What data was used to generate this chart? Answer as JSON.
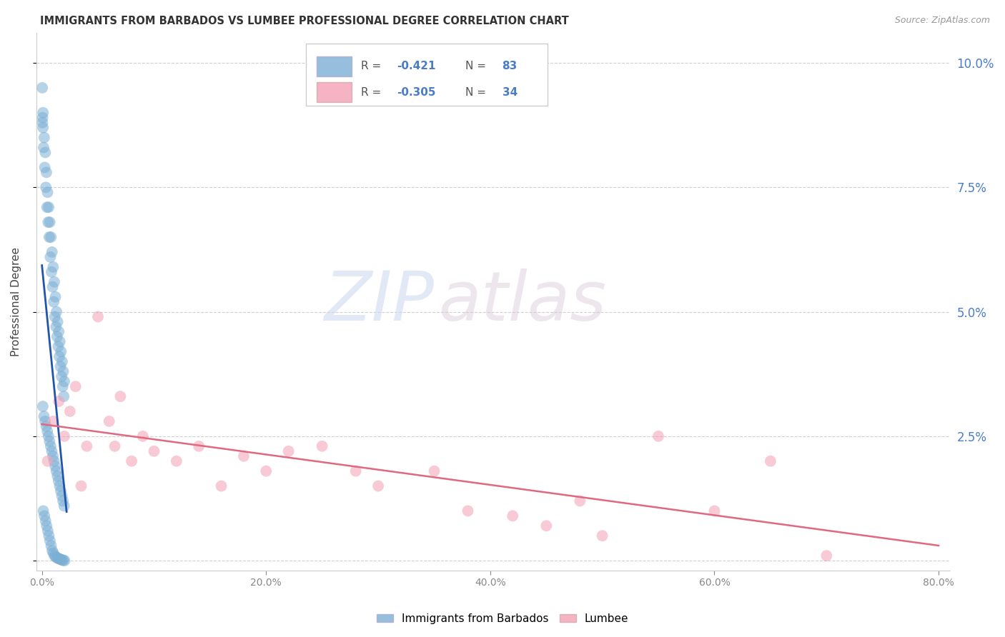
{
  "title": "IMMIGRANTS FROM BARBADOS VS LUMBEE PROFESSIONAL DEGREE CORRELATION CHART",
  "source": "Source: ZipAtlas.com",
  "ylabel": "Professional Degree",
  "blue_R": -0.421,
  "blue_N": 83,
  "pink_R": -0.305,
  "pink_N": 34,
  "blue_color": "#7bafd4",
  "pink_color": "#f4a0b5",
  "blue_line_color": "#2255aa",
  "pink_line_color": "#e06880",
  "legend_blue_label": "Immigrants from Barbados",
  "legend_pink_label": "Lumbee",
  "watermark_zip": "ZIP",
  "watermark_atlas": "atlas",
  "background_color": "#ffffff",
  "right_axis_color": "#4a7cc7",
  "blue_x": [
    0.1,
    0.2,
    0.3,
    0.4,
    0.5,
    0.6,
    0.7,
    0.8,
    0.9,
    1.0,
    1.1,
    1.2,
    1.3,
    1.4,
    1.5,
    1.6,
    1.7,
    1.8,
    1.9,
    2.0,
    0.05,
    0.15,
    0.25,
    0.35,
    0.45,
    0.55,
    0.65,
    0.75,
    0.85,
    0.95,
    1.05,
    1.15,
    1.25,
    1.35,
    1.45,
    1.55,
    1.65,
    1.75,
    1.85,
    1.95,
    0.08,
    0.18,
    0.28,
    0.38,
    0.48,
    0.58,
    0.68,
    0.78,
    0.88,
    0.98,
    1.08,
    1.18,
    1.28,
    1.38,
    1.48,
    1.58,
    1.68,
    1.78,
    1.88,
    1.98,
    0.12,
    0.22,
    0.32,
    0.42,
    0.52,
    0.62,
    0.72,
    0.82,
    0.92,
    1.02,
    1.12,
    1.22,
    1.32,
    1.42,
    1.52,
    1.62,
    1.72,
    1.82,
    1.92,
    2.02,
    0.03,
    0.06,
    0.09
  ],
  "blue_y": [
    9.0,
    8.5,
    8.2,
    7.8,
    7.4,
    7.1,
    6.8,
    6.5,
    6.2,
    5.9,
    5.6,
    5.3,
    5.0,
    4.8,
    4.6,
    4.4,
    4.2,
    4.0,
    3.8,
    3.6,
    8.8,
    8.3,
    7.9,
    7.5,
    7.1,
    6.8,
    6.5,
    6.1,
    5.8,
    5.5,
    5.2,
    4.9,
    4.7,
    4.5,
    4.3,
    4.1,
    3.9,
    3.7,
    3.5,
    3.3,
    3.1,
    2.9,
    2.8,
    2.7,
    2.6,
    2.5,
    2.4,
    2.3,
    2.2,
    2.1,
    2.0,
    1.9,
    1.8,
    1.7,
    1.6,
    1.5,
    1.4,
    1.3,
    1.2,
    1.1,
    1.0,
    0.9,
    0.8,
    0.7,
    0.6,
    0.5,
    0.4,
    0.3,
    0.2,
    0.15,
    0.1,
    0.08,
    0.06,
    0.05,
    0.04,
    0.03,
    0.02,
    0.01,
    0.01,
    0.0,
    9.5,
    8.9,
    8.7
  ],
  "pink_x": [
    0.5,
    1.0,
    1.5,
    2.0,
    2.5,
    3.0,
    4.0,
    5.0,
    6.0,
    7.0,
    8.0,
    9.0,
    10.0,
    12.0,
    14.0,
    16.0,
    18.0,
    20.0,
    22.0,
    25.0,
    28.0,
    30.0,
    35.0,
    38.0,
    42.0,
    45.0,
    50.0,
    55.0,
    60.0,
    65.0,
    70.0,
    3.5,
    6.5,
    48.0
  ],
  "pink_y": [
    2.0,
    2.8,
    3.2,
    2.5,
    3.0,
    3.5,
    2.3,
    4.9,
    2.8,
    3.3,
    2.0,
    2.5,
    2.2,
    2.0,
    2.3,
    1.5,
    2.1,
    1.8,
    2.2,
    2.3,
    1.8,
    1.5,
    1.8,
    1.0,
    0.9,
    0.7,
    0.5,
    2.5,
    1.0,
    2.0,
    0.1,
    1.5,
    2.3,
    1.2
  ]
}
